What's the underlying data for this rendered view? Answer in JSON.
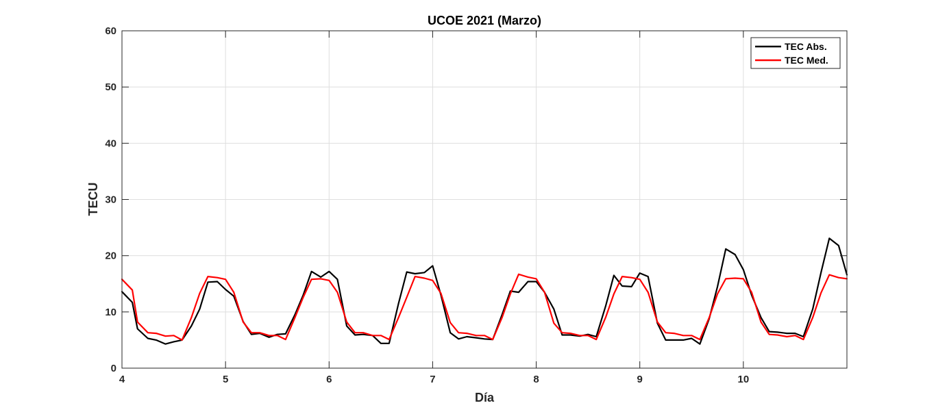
{
  "chart_data": {
    "type": "line",
    "title": "UCOE 2021 (Marzo)",
    "xlabel": "Día",
    "ylabel": "TECU",
    "xlim": [
      4,
      11
    ],
    "ylim": [
      0,
      60
    ],
    "xticks": [
      4,
      5,
      6,
      7,
      8,
      9,
      10
    ],
    "yticks": [
      0,
      10,
      20,
      30,
      40,
      50,
      60
    ],
    "grid": true,
    "legend_position": "top-right",
    "colors": {
      "abs": "#000000",
      "med": "#ff0000",
      "grid": "#dedede",
      "axis": "#262626"
    },
    "x": [
      4.0,
      4.1,
      4.15,
      4.25,
      4.33,
      4.42,
      4.5,
      4.58,
      4.67,
      4.75,
      4.83,
      4.92,
      5.0,
      5.08,
      5.17,
      5.25,
      5.33,
      5.42,
      5.5,
      5.58,
      5.67,
      5.75,
      5.83,
      5.92,
      6.0,
      6.08,
      6.17,
      6.25,
      6.33,
      6.42,
      6.5,
      6.58,
      6.67,
      6.75,
      6.83,
      6.92,
      7.0,
      7.08,
      7.17,
      7.25,
      7.33,
      7.42,
      7.5,
      7.58,
      7.67,
      7.75,
      7.83,
      7.92,
      8.0,
      8.08,
      8.17,
      8.25,
      8.33,
      8.42,
      8.5,
      8.58,
      8.67,
      8.75,
      8.83,
      8.92,
      9.0,
      9.08,
      9.17,
      9.25,
      9.33,
      9.42,
      9.5,
      9.58,
      9.67,
      9.75,
      9.83,
      9.92,
      10.0,
      10.08,
      10.17,
      10.25,
      10.33,
      10.42,
      10.5,
      10.58,
      10.67,
      10.75,
      10.83,
      10.92,
      11.0
    ],
    "series": [
      {
        "name": "TEC Abs.",
        "color": "#000000",
        "values": [
          13.6,
          11.7,
          7.0,
          5.3,
          5.0,
          4.3,
          4.7,
          5.0,
          7.5,
          10.5,
          15.3,
          15.4,
          14.0,
          12.8,
          8.3,
          6.0,
          6.2,
          5.5,
          6.0,
          6.1,
          9.5,
          13.0,
          17.2,
          16.2,
          17.2,
          15.8,
          7.5,
          5.9,
          6.0,
          5.8,
          4.4,
          4.4,
          11.5,
          17.1,
          16.8,
          17.0,
          18.2,
          13.0,
          6.3,
          5.2,
          5.6,
          5.4,
          5.2,
          5.1,
          9.5,
          13.7,
          13.5,
          15.4,
          15.4,
          13.5,
          10.5,
          5.9,
          5.9,
          5.7,
          6.0,
          5.6,
          11.0,
          16.5,
          14.6,
          14.5,
          16.9,
          16.3,
          8.0,
          5.0,
          5.0,
          5.0,
          5.3,
          4.3,
          8.8,
          14.5,
          21.2,
          20.2,
          17.5,
          13.0,
          9.0,
          6.5,
          6.4,
          6.2,
          6.2,
          5.6,
          10.5,
          17.0,
          23.1,
          21.8,
          16.6
        ]
      },
      {
        "name": "TEC Med.",
        "color": "#ff0000",
        "values": [
          15.8,
          13.9,
          8.2,
          6.3,
          6.2,
          5.7,
          5.8,
          5.0,
          9.0,
          13.3,
          16.3,
          16.1,
          15.8,
          13.5,
          8.2,
          6.3,
          6.3,
          5.8,
          5.8,
          5.1,
          9.0,
          12.6,
          15.8,
          15.9,
          15.6,
          13.5,
          8.2,
          6.3,
          6.3,
          5.8,
          5.8,
          5.1,
          9.0,
          12.6,
          16.3,
          16.0,
          15.6,
          13.3,
          8.1,
          6.3,
          6.2,
          5.8,
          5.8,
          5.1,
          9.0,
          13.2,
          16.7,
          16.2,
          15.9,
          13.5,
          8.0,
          6.3,
          6.2,
          5.8,
          5.8,
          5.1,
          9.0,
          13.2,
          16.3,
          16.1,
          15.8,
          13.5,
          8.2,
          6.3,
          6.2,
          5.8,
          5.8,
          5.1,
          9.0,
          13.2,
          15.9,
          16.0,
          15.9,
          13.5,
          8.2,
          6.0,
          5.9,
          5.6,
          5.8,
          5.1,
          9.0,
          13.4,
          16.6,
          16.1,
          15.9
        ]
      }
    ]
  }
}
